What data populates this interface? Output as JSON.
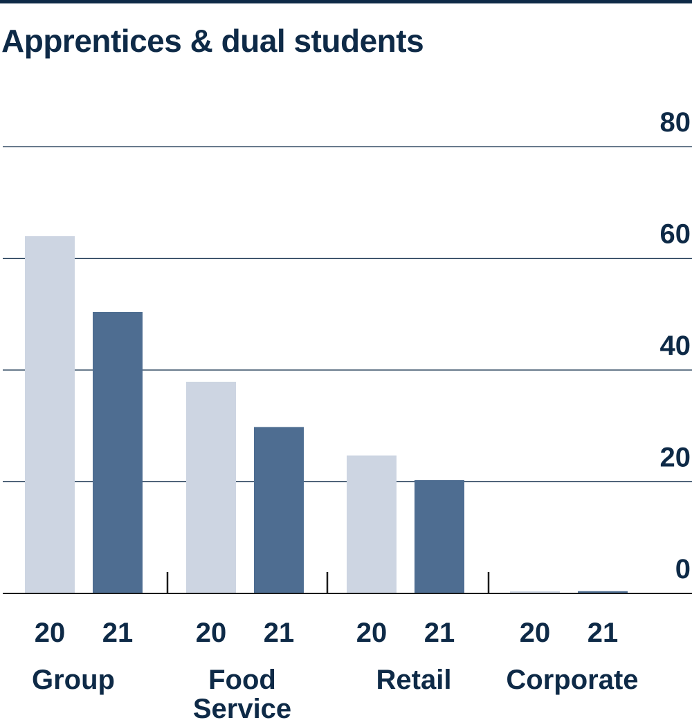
{
  "chart_data": {
    "type": "bar",
    "title": "Apprentices & dual students",
    "groups": [
      {
        "label_lines": [
          "Group"
        ]
      },
      {
        "label_lines": [
          "Food",
          "Service"
        ]
      },
      {
        "label_lines": [
          "Retail"
        ]
      },
      {
        "label_lines": [
          "Corporate"
        ]
      }
    ],
    "sub_categories": [
      "20",
      "21"
    ],
    "series": [
      {
        "values": [
          64,
          37.9,
          24.7,
          0.4
        ],
        "color": "#cdd5e2"
      },
      {
        "values": [
          50.4,
          29.8,
          20.3,
          0.4
        ],
        "color": "#4e6d91"
      }
    ],
    "ylim": [
      0,
      80
    ],
    "yticks": [
      0,
      20,
      40,
      60,
      80
    ],
    "grid": true,
    "axis_position": "right"
  },
  "colors": {
    "text": "#0e2a47",
    "grid": "#0e2a47"
  }
}
